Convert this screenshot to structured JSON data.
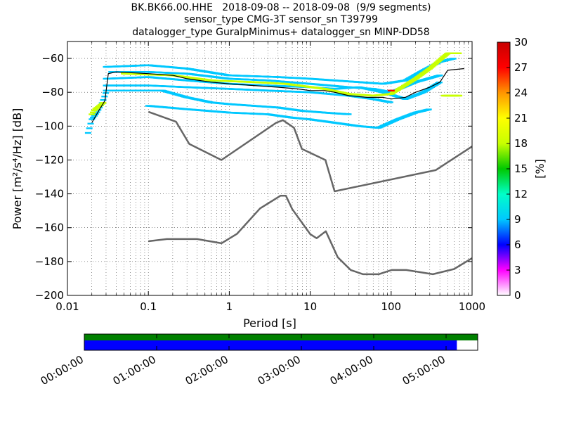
{
  "title": {
    "line1": "BK.BK66.00.HHE   2018-09-08 -- 2018-09-08  (9/9 segments)",
    "line2": "sensor_type CMG-3T sensor_sn T39799",
    "line3": "datalogger_type GuralpMinimus+ datalogger_sn MINP-DD58"
  },
  "chart_data": {
    "type": "heatmap",
    "title": "BK.BK66.00.HHE   2018-09-08 -- 2018-09-08  (9/9 segments)",
    "xlabel": "Period [s]",
    "ylabel": "Power [m²/s⁴/Hz] [dB]",
    "xscale": "log",
    "xlim": [
      0.01,
      1000
    ],
    "ylim": [
      -200,
      -50
    ],
    "xtick_labels": [
      "0.01",
      "0.1",
      "1",
      "10",
      "100",
      "1000"
    ],
    "xtick_values": [
      0.01,
      0.1,
      1,
      10,
      100,
      1000
    ],
    "ytick_values": [
      -200,
      -180,
      -160,
      -140,
      -120,
      -100,
      -80,
      -60
    ],
    "ytick_labels": [
      "−200",
      "−180",
      "−160",
      "−140",
      "−120",
      "−100",
      "−80",
      "−60"
    ],
    "grid": true,
    "colorbar": {
      "label": "[%]",
      "range": [
        0,
        30
      ],
      "tick_values": [
        0,
        3,
        6,
        9,
        12,
        15,
        18,
        21,
        24,
        27,
        30
      ],
      "tick_labels": [
        "0",
        "3",
        "6",
        "9",
        "12",
        "15",
        "18",
        "21",
        "24",
        "27",
        "30"
      ],
      "colormap": [
        "#ffffff",
        "#ff00ff",
        "#0000ff",
        "#00c8ff",
        "#00ffc8",
        "#00c800",
        "#c8ff00",
        "#ffff00",
        "#ff9600",
        "#ff0000",
        "#c80000"
      ]
    },
    "series": [
      {
        "name": "mode",
        "color": "#000000",
        "points": [
          [
            0.02,
            -98
          ],
          [
            0.025,
            -90
          ],
          [
            0.029,
            -85
          ],
          [
            0.032,
            -69
          ],
          [
            0.04,
            -68
          ],
          [
            0.1,
            -69
          ],
          [
            0.2,
            -70
          ],
          [
            0.3,
            -72
          ],
          [
            0.6,
            -74
          ],
          [
            1,
            -75
          ],
          [
            2,
            -76
          ],
          [
            4,
            -77
          ],
          [
            7,
            -78
          ],
          [
            10,
            -79
          ],
          [
            15,
            -79
          ],
          [
            20,
            -80
          ],
          [
            30,
            -82
          ],
          [
            50,
            -83
          ],
          [
            80,
            -83
          ],
          [
            100,
            -84
          ],
          [
            150,
            -83
          ],
          [
            200,
            -80
          ],
          [
            300,
            -77
          ],
          [
            400,
            -74
          ],
          [
            500,
            -67
          ],
          [
            800,
            -66
          ]
        ]
      },
      {
        "name": "NHNM",
        "color": "#666666",
        "points": [
          [
            0.1,
            -91.5
          ],
          [
            0.22,
            -97.4
          ],
          [
            0.32,
            -110.5
          ],
          [
            0.8,
            -120
          ],
          [
            3.8,
            -98
          ],
          [
            4.6,
            -96.5
          ],
          [
            6.3,
            -101
          ],
          [
            7.9,
            -113.5
          ],
          [
            15.4,
            -120
          ],
          [
            20,
            -138.5
          ],
          [
            354.8,
            -126
          ],
          [
            1000,
            -112
          ]
        ]
      },
      {
        "name": "NLNM",
        "color": "#666666",
        "points": [
          [
            0.1,
            -168
          ],
          [
            0.17,
            -166.7
          ],
          [
            0.4,
            -166.7
          ],
          [
            0.8,
            -169.2
          ],
          [
            1.24,
            -163.7
          ],
          [
            2.4,
            -148.6
          ],
          [
            4.3,
            -141.1
          ],
          [
            5,
            -141.1
          ],
          [
            6,
            -149
          ],
          [
            10,
            -163.8
          ],
          [
            12,
            -166.2
          ],
          [
            15.6,
            -162.1
          ],
          [
            21.9,
            -177.5
          ],
          [
            31.6,
            -185
          ],
          [
            45,
            -187.5
          ],
          [
            70,
            -187.5
          ],
          [
            101,
            -185
          ],
          [
            154,
            -185
          ],
          [
            328,
            -187.5
          ],
          [
            600,
            -184.4
          ],
          [
            1000,
            -178
          ]
        ]
      }
    ],
    "heat_bands": [
      {
        "color": "#00c8ff",
        "points": [
          [
            0.03,
            -65
          ],
          [
            0.1,
            -64
          ],
          [
            0.3,
            -66
          ],
          [
            1,
            -70
          ],
          [
            4,
            -71
          ],
          [
            10,
            -72
          ],
          [
            20,
            -73
          ],
          [
            40,
            -74
          ],
          [
            80,
            -75
          ],
          [
            150,
            -73
          ],
          [
            250,
            -67
          ],
          [
            400,
            -62
          ],
          [
            600,
            -60
          ]
        ]
      },
      {
        "color": "#00c8ff",
        "points": [
          [
            0.035,
            -68
          ],
          [
            0.1,
            -68
          ],
          [
            0.3,
            -69
          ],
          [
            1,
            -72
          ],
          [
            3,
            -73
          ],
          [
            10,
            -75
          ],
          [
            30,
            -77
          ],
          [
            60,
            -78
          ],
          [
            100,
            -80
          ],
          [
            200,
            -74
          ],
          [
            400,
            -70
          ]
        ]
      },
      {
        "color": "#00c8ff",
        "points": [
          [
            0.03,
            -72
          ],
          [
            0.1,
            -71
          ],
          [
            0.3,
            -73
          ],
          [
            1,
            -75
          ],
          [
            3,
            -76
          ],
          [
            10,
            -77
          ],
          [
            20,
            -78
          ],
          [
            40,
            -77
          ],
          [
            80,
            -80
          ],
          [
            150,
            -84
          ],
          [
            250,
            -80
          ],
          [
            400,
            -74
          ]
        ]
      },
      {
        "color": "#00c8ff",
        "points": [
          [
            0.03,
            -76
          ],
          [
            0.1,
            -76
          ],
          [
            0.3,
            -77
          ],
          [
            1,
            -78
          ],
          [
            3,
            -79
          ],
          [
            10,
            -80
          ],
          [
            30,
            -82
          ],
          [
            60,
            -84
          ],
          [
            100,
            -86
          ]
        ]
      },
      {
        "color": "#00c8ff",
        "points": [
          [
            0.03,
            -79
          ],
          [
            0.08,
            -79
          ],
          [
            0.15,
            -79
          ],
          [
            0.3,
            -83
          ],
          [
            0.6,
            -86
          ],
          [
            1,
            -87
          ],
          [
            2,
            -88
          ],
          [
            4,
            -89
          ],
          [
            8,
            -91
          ],
          [
            15,
            -92
          ],
          [
            30,
            -93
          ]
        ]
      },
      {
        "color": "#00c8ff",
        "points": [
          [
            0.1,
            -88
          ],
          [
            0.3,
            -90
          ],
          [
            1,
            -92
          ],
          [
            3,
            -93
          ],
          [
            6,
            -95
          ],
          [
            10,
            -96
          ],
          [
            20,
            -98
          ],
          [
            40,
            -100
          ],
          [
            70,
            -101
          ],
          [
            120,
            -96
          ],
          [
            200,
            -92
          ],
          [
            300,
            -90
          ]
        ]
      },
      {
        "color": "#00c8ff",
        "points": [
          [
            0.018,
            -104
          ],
          [
            0.02,
            -96
          ],
          [
            0.023,
            -92
          ],
          [
            0.027,
            -86
          ],
          [
            0.03,
            -80
          ]
        ]
      },
      {
        "color": "#c8ff00",
        "points": [
          [
            0.05,
            -69
          ],
          [
            0.2,
            -70
          ],
          [
            0.6,
            -73
          ],
          [
            2,
            -74
          ],
          [
            5,
            -75
          ],
          [
            15,
            -78
          ],
          [
            30,
            -81
          ],
          [
            60,
            -82
          ],
          [
            100,
            -81
          ],
          [
            200,
            -72
          ],
          [
            300,
            -66
          ],
          [
            500,
            -57
          ],
          [
            700,
            -57
          ]
        ]
      },
      {
        "color": "#c8ff00",
        "points": [
          [
            0.02,
            -93
          ],
          [
            0.022,
            -90
          ],
          [
            0.025,
            -88
          ],
          [
            0.028,
            -86
          ]
        ]
      },
      {
        "color": "#c8ff00",
        "points": [
          [
            450,
            -82
          ],
          [
            500,
            -82
          ],
          [
            700,
            -82
          ]
        ]
      }
    ],
    "heat_hot": {
      "color": "#ff0000",
      "period": 100,
      "value": -79
    },
    "availability": {
      "time_labels": [
        "00:00:00",
        "01:00:00",
        "02:00:00",
        "03:00:00",
        "04:00:00",
        "05:00:00"
      ],
      "data_color": "#0000ff",
      "segments_color": "#008000",
      "data_coverage_fraction": 0.947
    }
  }
}
